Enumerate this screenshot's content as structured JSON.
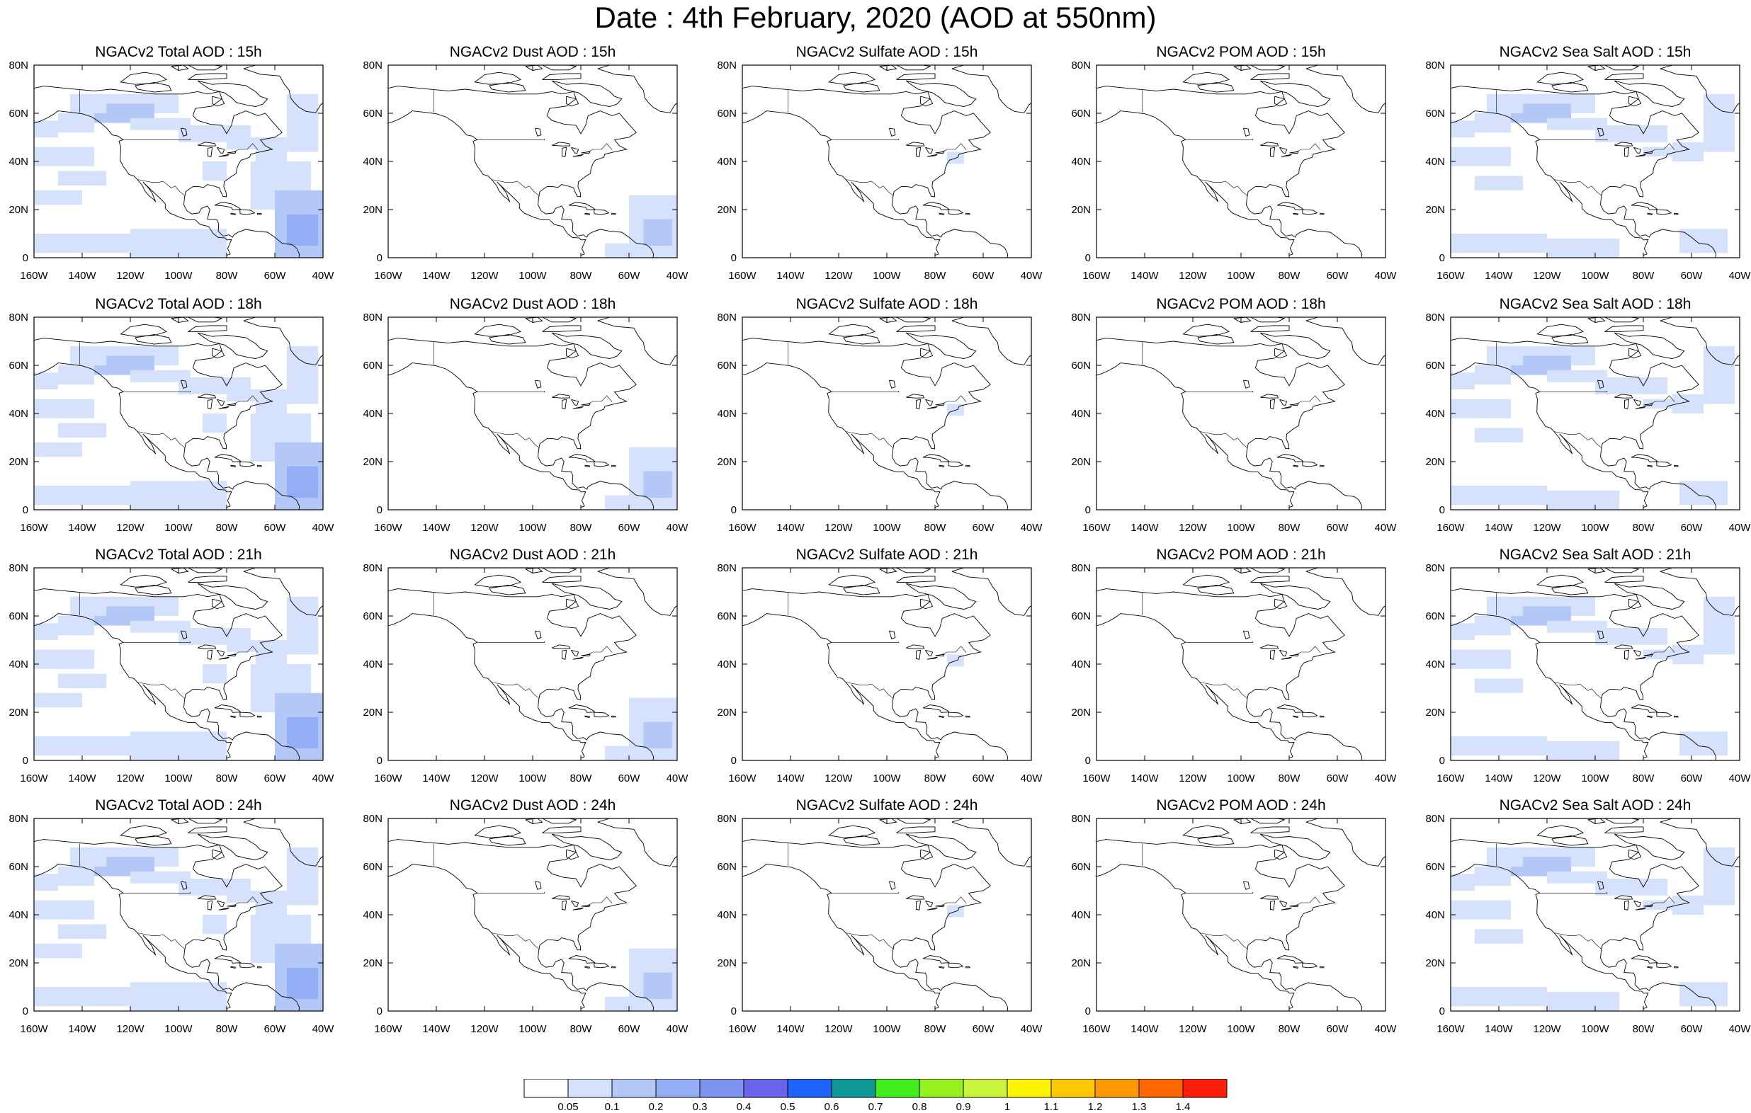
{
  "title": "Date : 4th February, 2020 (AOD at 550nm)",
  "lon_labels": [
    "160W",
    "140W",
    "120W",
    "100W",
    "80W",
    "60W",
    "40W"
  ],
  "lat_labels": [
    "0",
    "20N",
    "40N",
    "60N",
    "80N"
  ],
  "panels": [
    {
      "title": "NGACv2 Total AOD : 15h",
      "species": "total",
      "hour": 15
    },
    {
      "title": "NGACv2 Dust AOD : 15h",
      "species": "dust",
      "hour": 15
    },
    {
      "title": "NGACv2 Sulfate AOD : 15h",
      "species": "sulfate",
      "hour": 15
    },
    {
      "title": "NGACv2 POM AOD : 15h",
      "species": "pom",
      "hour": 15
    },
    {
      "title": "NGACv2 Sea Salt AOD : 15h",
      "species": "seasalt",
      "hour": 15
    },
    {
      "title": "NGACv2 Total AOD : 18h",
      "species": "total",
      "hour": 18
    },
    {
      "title": "NGACv2 Dust AOD : 18h",
      "species": "dust",
      "hour": 18
    },
    {
      "title": "NGACv2 Sulfate AOD : 18h",
      "species": "sulfate",
      "hour": 18
    },
    {
      "title": "NGACv2 POM AOD : 18h",
      "species": "pom",
      "hour": 18
    },
    {
      "title": "NGACv2 Sea Salt AOD : 18h",
      "species": "seasalt",
      "hour": 18
    },
    {
      "title": "NGACv2 Total AOD : 21h",
      "species": "total",
      "hour": 21
    },
    {
      "title": "NGACv2 Dust AOD : 21h",
      "species": "dust",
      "hour": 21
    },
    {
      "title": "NGACv2 Sulfate AOD : 21h",
      "species": "sulfate",
      "hour": 21
    },
    {
      "title": "NGACv2 POM AOD : 21h",
      "species": "pom",
      "hour": 21
    },
    {
      "title": "NGACv2 Sea Salt AOD : 21h",
      "species": "seasalt",
      "hour": 21
    },
    {
      "title": "NGACv2 Total AOD : 24h",
      "species": "total",
      "hour": 24
    },
    {
      "title": "NGACv2 Dust AOD : 24h",
      "species": "dust",
      "hour": 24
    },
    {
      "title": "NGACv2 Sulfate AOD : 24h",
      "species": "sulfate",
      "hour": 24
    },
    {
      "title": "NGACv2 POM AOD : 24h",
      "species": "pom",
      "hour": 24
    },
    {
      "title": "NGACv2 Sea Salt  AOD : 24h",
      "species": "seasalt",
      "hour": 24
    }
  ],
  "colorbar": {
    "labels": [
      "0.05",
      "0.1",
      "0.2",
      "0.3",
      "0.4",
      "0.5",
      "0.6",
      "0.7",
      "0.8",
      "0.9",
      "1",
      "1.1",
      "1.2",
      "1.3",
      "1.4"
    ],
    "colors": [
      "#ffffff",
      "#d6e2fb",
      "#b4c8f8",
      "#93aef5",
      "#7e93ef",
      "#6a64ec",
      "#1e64fa",
      "#0f9696",
      "#40ee1e",
      "#96f01e",
      "#c8f53c",
      "#fff500",
      "#ffc800",
      "#ff9900",
      "#ff6600",
      "#ff1e0a"
    ]
  },
  "map_colors": {
    "land_line": "#000000",
    "aod_low": "#d6e2fb",
    "aod_mid": "#b4c8f8",
    "aod_high": "#93aef5"
  }
}
